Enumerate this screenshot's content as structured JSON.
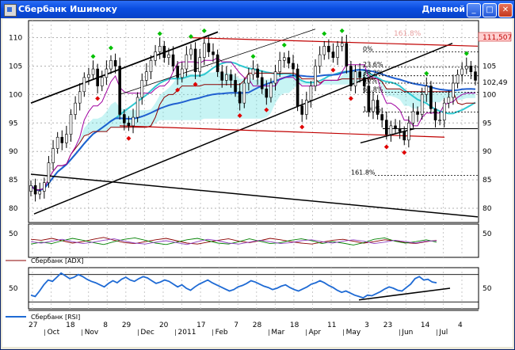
{
  "window": {
    "title": "Сбербанк Ишимоку",
    "period": "Дневной",
    "minimize_glyph": "_",
    "maximize_glyph": "□",
    "close_glyph": "✕"
  },
  "colors": {
    "price_bars": "#000000",
    "channel_black": "#000000",
    "channel_red": "#c00000",
    "ichimoku_cloud": "#5ee0e0",
    "tenkan": "#a000a0",
    "kijun": "#8b0000",
    "sma_cyan": "#30c8d0",
    "sma_blue": "#2060d0",
    "fractal_up": "#00c000",
    "fractal_down": "#e00000",
    "rsi_line": "#1e6ad4",
    "price_tag_bg": "#ffd0d0"
  },
  "chart_data": [
    {
      "type": "line",
      "panel": "price",
      "y_ticks": [
        "110",
        "105",
        "100",
        "95",
        "90",
        "85",
        "80"
      ],
      "ylim": [
        77.5,
        113
      ],
      "current_price_label": "111,507",
      "last_close_label": "102,49",
      "faint_top_label": "161.8%",
      "fib_labels": [
        "0%",
        "23.6%",
        "38.2%",
        "50%",
        "61.8%",
        "100%",
        "161.8%"
      ],
      "x_ticks": [
        {
          "label": "27",
          "major": false
        },
        {
          "label": "Oct",
          "major": true
        },
        {
          "label": "18",
          "major": false
        },
        {
          "label": "Nov",
          "major": true
        },
        {
          "label": "8",
          "major": false
        },
        {
          "label": "29",
          "major": false
        },
        {
          "label": "Dec",
          "major": true
        },
        {
          "label": "20",
          "major": false
        },
        {
          "label": "2011",
          "major": true
        },
        {
          "label": "17",
          "major": false
        },
        {
          "label": "Feb",
          "major": true
        },
        {
          "label": "7",
          "major": false
        },
        {
          "label": "28",
          "major": false
        },
        {
          "label": "Mar",
          "major": true
        },
        {
          "label": "18",
          "major": false
        },
        {
          "label": "Apr",
          "major": true
        },
        {
          "label": "11",
          "major": false
        },
        {
          "label": "May",
          "major": true
        },
        {
          "label": "3",
          "major": false
        },
        {
          "label": "23",
          "major": false
        },
        {
          "label": "Jun",
          "major": true
        },
        {
          "label": "14",
          "major": false
        },
        {
          "label": "Jul",
          "major": true
        },
        {
          "label": "4",
          "major": false
        }
      ],
      "close": [
        84.0,
        82.5,
        83.0,
        84.5,
        88.0,
        90.5,
        92.5,
        91.5,
        93.0,
        96.5,
        98.5,
        100.5,
        103.0,
        103.5,
        104.5,
        101.5,
        103.0,
        104.5,
        106.0,
        105.0,
        96.5,
        95.0,
        94.5,
        96.0,
        99.5,
        102.5,
        104.0,
        106.0,
        107.5,
        108.5,
        106.5,
        107.0,
        105.0,
        103.0,
        104.5,
        107.0,
        108.0,
        104.0,
        106.5,
        109.0,
        107.5,
        107.0,
        104.0,
        102.5,
        103.5,
        102.5,
        100.5,
        98.5,
        102.0,
        103.5,
        104.5,
        103.0,
        101.0,
        99.5,
        102.0,
        104.0,
        106.0,
        106.5,
        105.5,
        104.5,
        98.0,
        96.5,
        99.0,
        101.5,
        105.0,
        107.0,
        108.5,
        107.5,
        106.5,
        108.5,
        109.0,
        105.0,
        101.5,
        104.0,
        103.0,
        101.5,
        97.0,
        99.0,
        96.5,
        95.5,
        93.0,
        94.5,
        94.0,
        93.5,
        92.0,
        95.0,
        97.0,
        96.5,
        100.0,
        101.5,
        97.5,
        95.5,
        95.5,
        98.5,
        99.5,
        102.0,
        103.5,
        104.5,
        105.0,
        104.0,
        102.5
      ]
    },
    {
      "type": "line",
      "panel": "adx",
      "legend": "Сбербанк [ADX]",
      "y_ticks": [
        "50"
      ],
      "ylim": [
        0,
        70
      ],
      "series": [
        {
          "color": "#8b0000",
          "values": [
            38,
            36,
            40,
            35,
            30,
            33,
            38,
            42,
            36,
            31,
            29,
            33,
            37,
            40,
            35,
            30,
            28,
            32,
            36,
            39,
            34,
            31,
            35,
            40,
            37,
            33,
            30,
            28,
            32,
            36,
            38,
            34,
            30,
            33,
            37,
            35,
            31,
            29,
            33,
            36
          ]
        },
        {
          "color": "#008000",
          "values": [
            28,
            32,
            29,
            35,
            40,
            36,
            31,
            27,
            33,
            38,
            41,
            36,
            30,
            27,
            32,
            37,
            40,
            35,
            30,
            28,
            33,
            39,
            34,
            29,
            31,
            36,
            39,
            35,
            29,
            33,
            30,
            26,
            31,
            38,
            41,
            34,
            30,
            33,
            37,
            32
          ]
        },
        {
          "color": "#9040c0",
          "values": [
            33,
            30,
            34,
            38,
            33,
            29,
            32,
            36,
            39,
            34,
            30,
            28,
            32,
            35,
            31,
            27,
            33,
            38,
            35,
            30,
            28,
            32,
            36,
            33,
            29,
            31,
            35,
            37,
            33,
            30,
            34,
            37,
            34,
            29,
            32,
            36,
            33,
            30,
            34,
            35
          ]
        }
      ]
    },
    {
      "type": "line",
      "panel": "rsi",
      "legend": "Сбербанк [RSI]",
      "y_ticks": [
        "50"
      ],
      "ylim": [
        20,
        80
      ],
      "levels": [
        30,
        70
      ],
      "series": [
        {
          "values": [
            40,
            38,
            46,
            55,
            62,
            60,
            66,
            72,
            68,
            64,
            66,
            70,
            67,
            63,
            60,
            58,
            55,
            52,
            57,
            61,
            58,
            63,
            66,
            62,
            60,
            64,
            67,
            65,
            61,
            57,
            59,
            62,
            60,
            56,
            52,
            55,
            50,
            47,
            52,
            56,
            59,
            62,
            58,
            55,
            52,
            49,
            46,
            48,
            52,
            54,
            57,
            61,
            59,
            56,
            53,
            51,
            48,
            50,
            53,
            55,
            51,
            48,
            46,
            49,
            52,
            56,
            58,
            61,
            58,
            54,
            51,
            47,
            44,
            46,
            43,
            40,
            38,
            36,
            40,
            39,
            42,
            45,
            49,
            52,
            50,
            47,
            46,
            51,
            56,
            64,
            67,
            62,
            63,
            59,
            58
          ]
        }
      ]
    }
  ]
}
